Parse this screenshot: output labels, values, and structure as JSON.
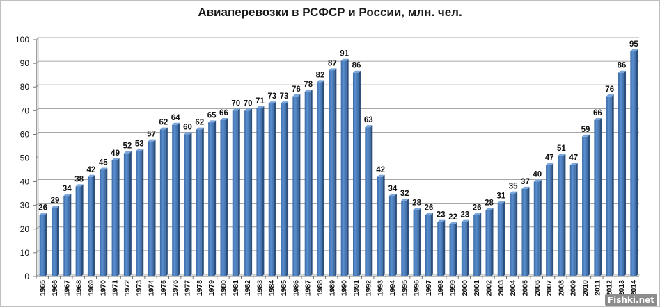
{
  "chart_data": {
    "type": "bar",
    "title": "Авиаперевозки в РСФСР и России, млн. чел.",
    "xlabel": "",
    "ylabel": "",
    "ylim": [
      0,
      100
    ],
    "yticks": [
      0,
      10,
      20,
      30,
      40,
      50,
      60,
      70,
      80,
      90,
      100
    ],
    "grid": true,
    "legend": "none",
    "bar_color": "#4f81bd",
    "categories": [
      "1965",
      "1966",
      "1967",
      "1968",
      "1969",
      "1970",
      "1971",
      "1972",
      "1973",
      "1974",
      "1975",
      "1976",
      "1977",
      "1978",
      "1979",
      "1980",
      "1981",
      "1982",
      "1983",
      "1984",
      "1985",
      "1986",
      "1987",
      "1988",
      "1989",
      "1990",
      "1991",
      "1992",
      "1993",
      "1994",
      "1995",
      "1996",
      "1997",
      "1998",
      "1999",
      "2000",
      "2001",
      "2002",
      "2003",
      "2004",
      "2005",
      "2006",
      "2007",
      "2008",
      "2009",
      "2010",
      "2011",
      "2012",
      "2013",
      "2014"
    ],
    "values": [
      26,
      29,
      34,
      38,
      42,
      45,
      49,
      52,
      53,
      57,
      62,
      64,
      60,
      62,
      65,
      66,
      70,
      70,
      71,
      73,
      73,
      76,
      78,
      82,
      87,
      91,
      86,
      63,
      42,
      34,
      32,
      28,
      26,
      23,
      22,
      23,
      26,
      28,
      31,
      35,
      37,
      40,
      47,
      51,
      47,
      59,
      66,
      76,
      86,
      95
    ]
  },
  "watermark": "Fishki.net"
}
